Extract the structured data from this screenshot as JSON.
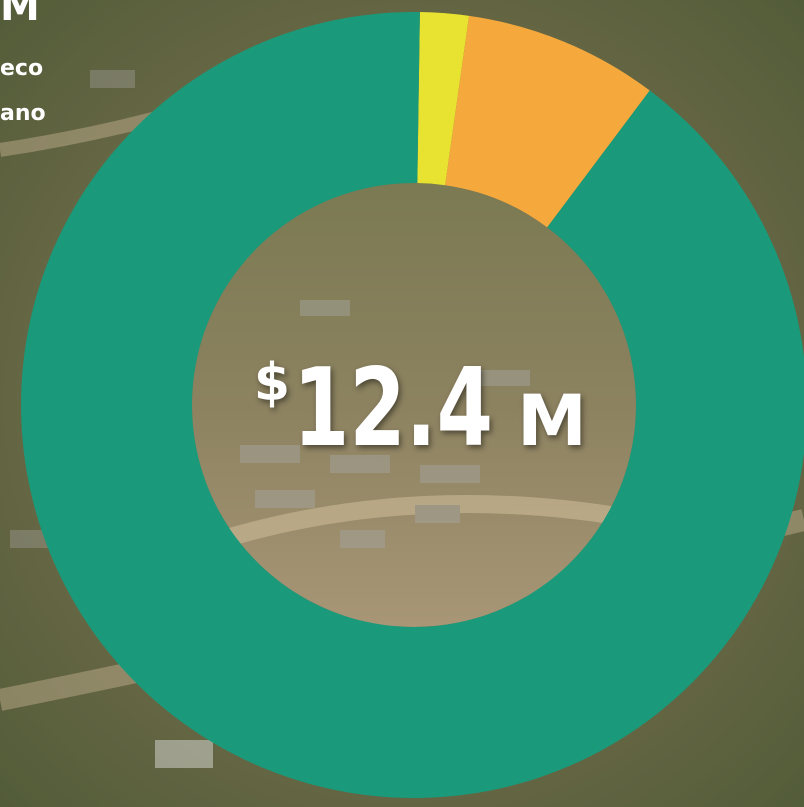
{
  "chart_data": {
    "type": "donut",
    "annotations": [
      "M",
      "eco",
      "ano"
    ],
    "center_label": {
      "currency": "$",
      "amount": "12.4",
      "unit": "M"
    },
    "values": [
      2,
      8,
      90
    ],
    "colors": [
      "#e8e230",
      "#f5a93d",
      "#1a9a7a"
    ]
  }
}
